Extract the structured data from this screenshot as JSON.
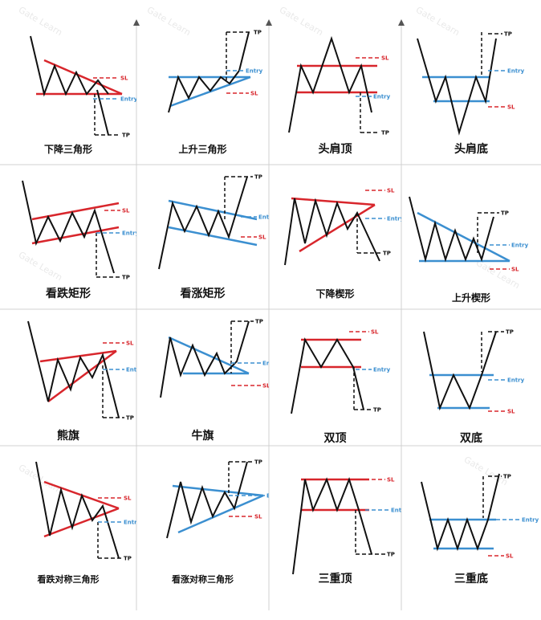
{
  "watermark": "Gate Learn",
  "labels": {
    "tp": "TP",
    "sl": "SL",
    "entry": "Entry"
  },
  "colors": {
    "red": "#d8262c",
    "blue": "#3b8fd0",
    "black": "#111111",
    "grid": "#d0d0d0"
  },
  "patterns": [
    {
      "id": "descending-triangle",
      "title": "下降三角形"
    },
    {
      "id": "ascending-triangle",
      "title": "上升三角形"
    },
    {
      "id": "head-and-shoulders-top",
      "title": "头肩顶"
    },
    {
      "id": "head-and-shoulders-bottom",
      "title": "头肩底"
    },
    {
      "id": "bearish-rectangle",
      "title": "看跌矩形"
    },
    {
      "id": "bullish-rectangle",
      "title": "看涨矩形"
    },
    {
      "id": "falling-wedge",
      "title": "下降楔形"
    },
    {
      "id": "rising-wedge",
      "title": "上升楔形"
    },
    {
      "id": "bear-flag",
      "title": "熊旗"
    },
    {
      "id": "bull-flag",
      "title": "牛旗"
    },
    {
      "id": "double-top",
      "title": "双顶"
    },
    {
      "id": "double-bottom",
      "title": "双底"
    },
    {
      "id": "bearish-symmetrical-triangle",
      "title": "看跌对称三角形"
    },
    {
      "id": "bullish-symmetrical-triangle",
      "title": "看涨对称三角形"
    },
    {
      "id": "triple-top",
      "title": "三重顶"
    },
    {
      "id": "triple-bottom",
      "title": "三重底"
    }
  ]
}
